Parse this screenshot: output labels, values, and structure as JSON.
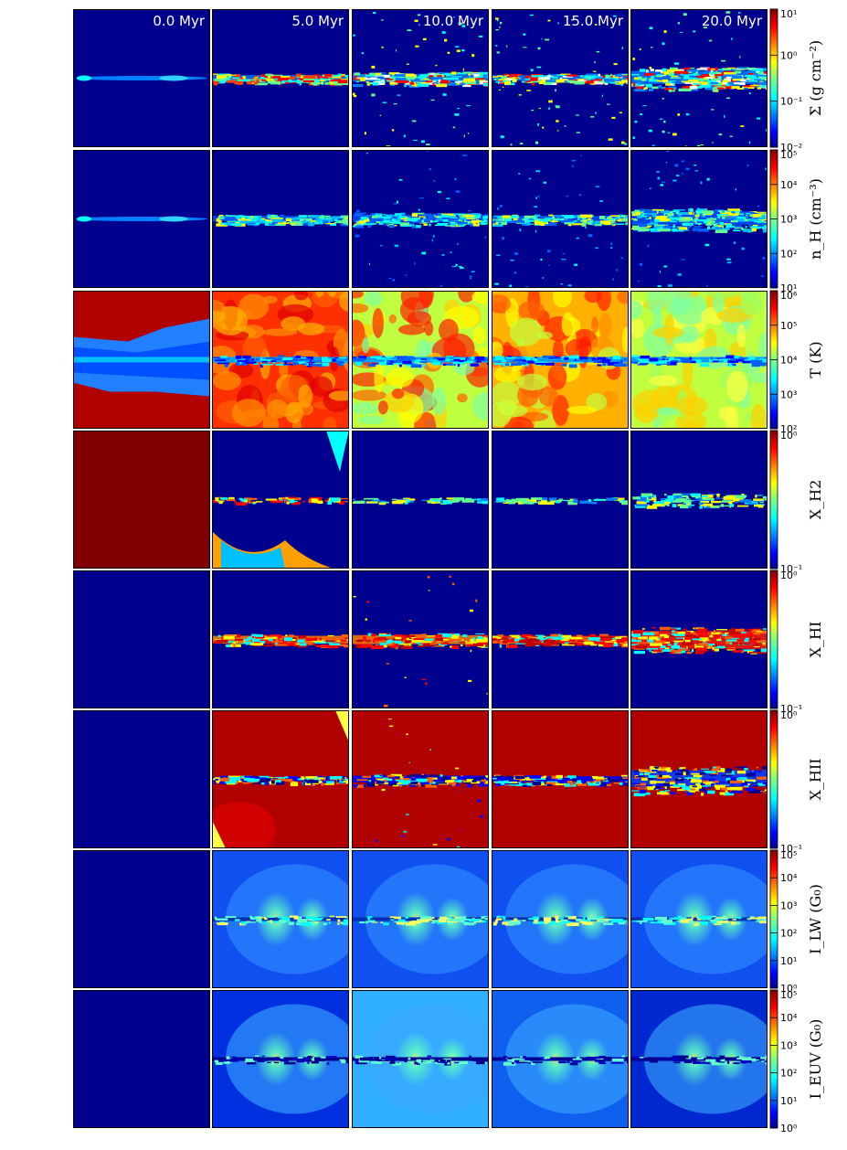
{
  "columns": [
    "0.0 Myr",
    "5.0 Myr",
    "10.0 Myr",
    "15.0 Myr",
    "20.0 Myr"
  ],
  "rows": [
    {
      "key": "sigma",
      "label": "Σ  (g cm⁻²)",
      "ticks": [
        "10¹",
        "10⁰",
        "10⁻¹",
        "10⁻²"
      ],
      "panels": [
        "sigma-t0",
        "sigma-t5",
        "sigma-t10",
        "sigma-t15",
        "sigma-t20"
      ]
    },
    {
      "key": "nH",
      "label": "n_H  (cm⁻³)",
      "ticks": [
        "10⁵",
        "10⁴",
        "10³",
        "10²",
        "10¹"
      ],
      "panels": [
        "nh-t0",
        "nh-t5",
        "nh-t10",
        "nh-t15",
        "nh-t20"
      ]
    },
    {
      "key": "T",
      "label": "T  (K)",
      "ticks": [
        "10⁶",
        "10⁵",
        "10⁴",
        "10³",
        "10²"
      ],
      "panels": [
        "temp-t0",
        "temp-t5",
        "temp-t10",
        "temp-t15",
        "temp-t20"
      ]
    },
    {
      "key": "XH2",
      "label": "X_H2",
      "ticks": [
        "10⁰",
        "10⁻¹"
      ],
      "panels": [
        "xh2-t0",
        "xh2-t5",
        "xh2-t10",
        "xh2-t15",
        "xh2-t20"
      ]
    },
    {
      "key": "XHI",
      "label": "X_HI",
      "ticks": [
        "10⁰",
        "10⁻¹"
      ],
      "panels": [
        "xhi-t0",
        "xhi-t5",
        "xhi-t10",
        "xhi-t15",
        "xhi-t20"
      ]
    },
    {
      "key": "XHII",
      "label": "X_HII",
      "ticks": [
        "10⁰",
        "10⁻¹"
      ],
      "panels": [
        "xhii-t0",
        "xhii-t5",
        "xhii-t10",
        "xhii-t15",
        "xhii-t20"
      ]
    },
    {
      "key": "ILW",
      "label": "I_LW  (G₀)",
      "ticks": [
        "10⁵",
        "10⁴",
        "10³",
        "10²",
        "10¹",
        "10⁰"
      ],
      "panels": [
        "ilw-t0",
        "ilw-t5",
        "ilw-t10",
        "ilw-t15",
        "ilw-t20"
      ]
    },
    {
      "key": "IEUV",
      "label": "I_EUV  (G₀)",
      "ticks": [
        "10⁵",
        "10⁴",
        "10³",
        "10²",
        "10¹",
        "10⁰"
      ],
      "panels": [
        "ieuv-t0",
        "ieuv-t5",
        "ieuv-t10",
        "ieuv-t15",
        "ieuv-t20"
      ]
    }
  ],
  "colors": {
    "jet_dark_blue": "#00008f",
    "jet_blue": "#0040ff",
    "jet_cyan": "#00ffff",
    "jet_yellow": "#ffff00",
    "jet_red": "#ff0000",
    "jet_dark_red": "#800000",
    "panel_border": "#000000"
  }
}
